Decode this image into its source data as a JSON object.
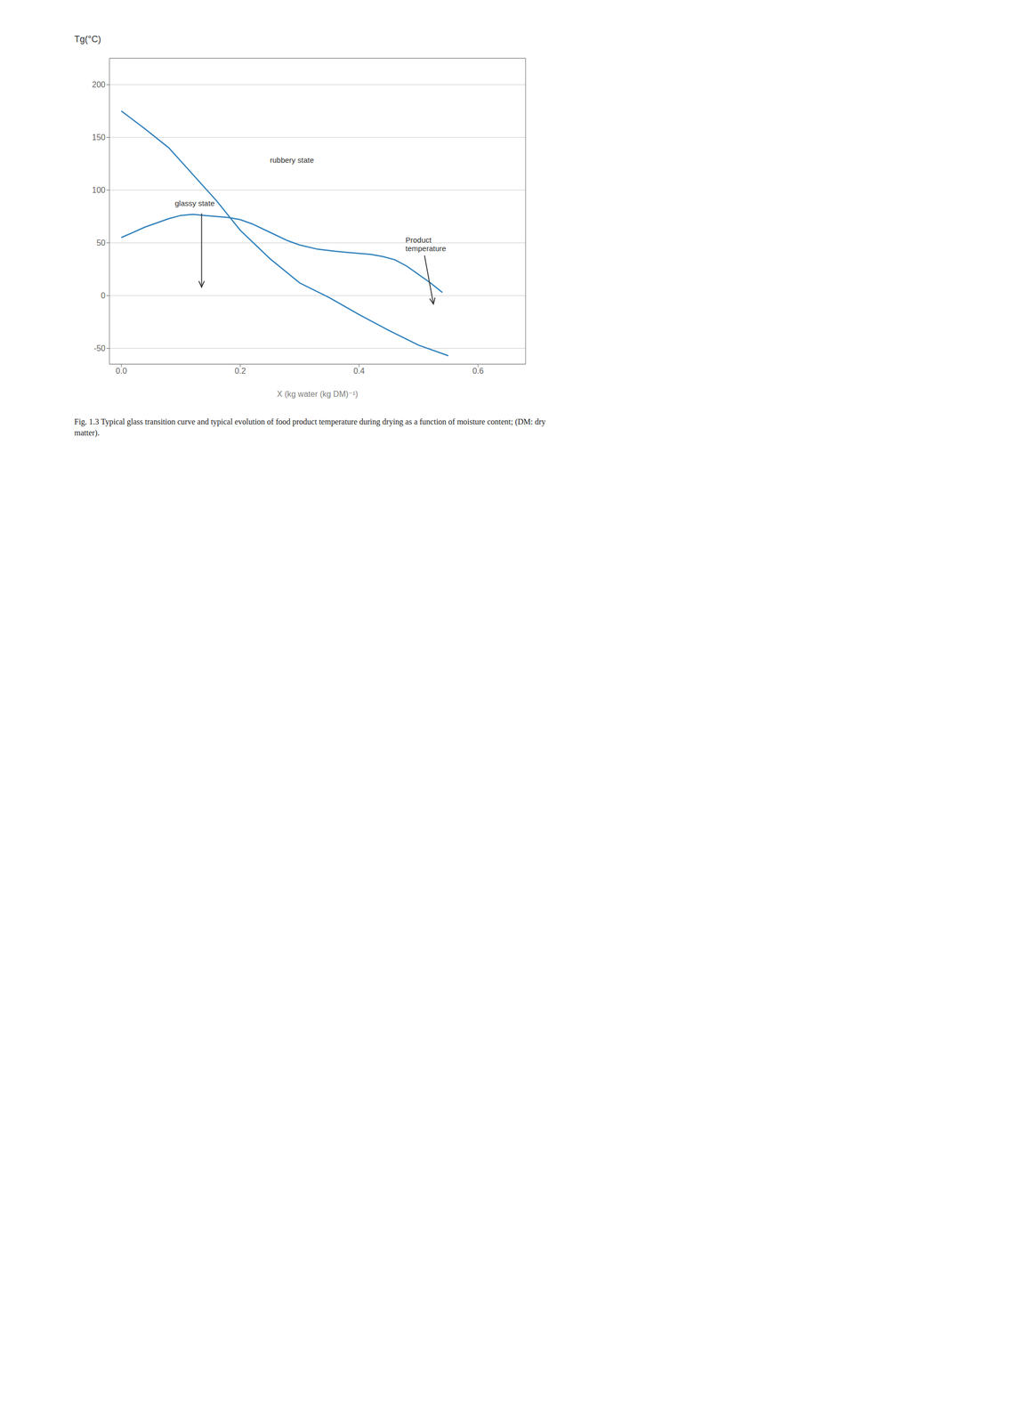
{
  "chart_data": {
    "type": "line",
    "title": "Fig. 1.3  Typical glass transition curve and typical evolution of food product temperature during drying as a function of moisture content; (DM: dry matter).",
    "x_label": "X (kg water (kg DM)⁻¹)",
    "y_label": "Tg(°C)",
    "xlim": [
      -0.02,
      0.68
    ],
    "ylim": [
      -65,
      225
    ],
    "xticks": [
      {
        "value": 0,
        "label": "0.0"
      },
      0.2,
      0.4,
      0.6
    ],
    "yticks": [
      -50,
      0,
      50,
      100,
      150,
      200
    ],
    "grid": true,
    "series": [
      {
        "x": [
          0.0,
          0.04,
          0.08,
          0.12,
          0.16,
          0.2,
          0.25,
          0.3,
          0.35,
          0.4,
          0.45,
          0.5,
          0.55
        ],
        "values": [
          175,
          158,
          140,
          115,
          90,
          62,
          35,
          12,
          -2,
          -18,
          -33,
          -47,
          -57
        ]
      },
      {
        "x": [
          0.0,
          0.04,
          0.08,
          0.1,
          0.12,
          0.14,
          0.16,
          0.18,
          0.2,
          0.22,
          0.25,
          0.28,
          0.3,
          0.33,
          0.36,
          0.38,
          0.4,
          0.42,
          0.44,
          0.46,
          0.48,
          0.5,
          0.52,
          0.54
        ],
        "values": [
          55,
          65,
          73,
          76,
          77,
          76,
          75,
          74,
          72,
          68,
          60,
          52,
          48,
          44,
          42,
          41,
          40,
          39,
          37,
          34,
          28,
          20,
          12,
          3
        ]
      }
    ],
    "annotations": [
      {
        "text": "rubbery state",
        "x": 0.25,
        "y": 128
      },
      {
        "text": "glassy state",
        "x": 0.09,
        "y": 87
      },
      {
        "text": "Product",
        "x": 0.478,
        "y": 52
      },
      {
        "text": "temperature",
        "x": 0.478,
        "y": 44
      }
    ],
    "arrows": [
      {
        "x": [
          0.51,
          0.525
        ],
        "y": [
          38,
          -8
        ]
      },
      {
        "x": [
          0.135,
          0.135
        ],
        "y": [
          78,
          8
        ]
      }
    ]
  }
}
